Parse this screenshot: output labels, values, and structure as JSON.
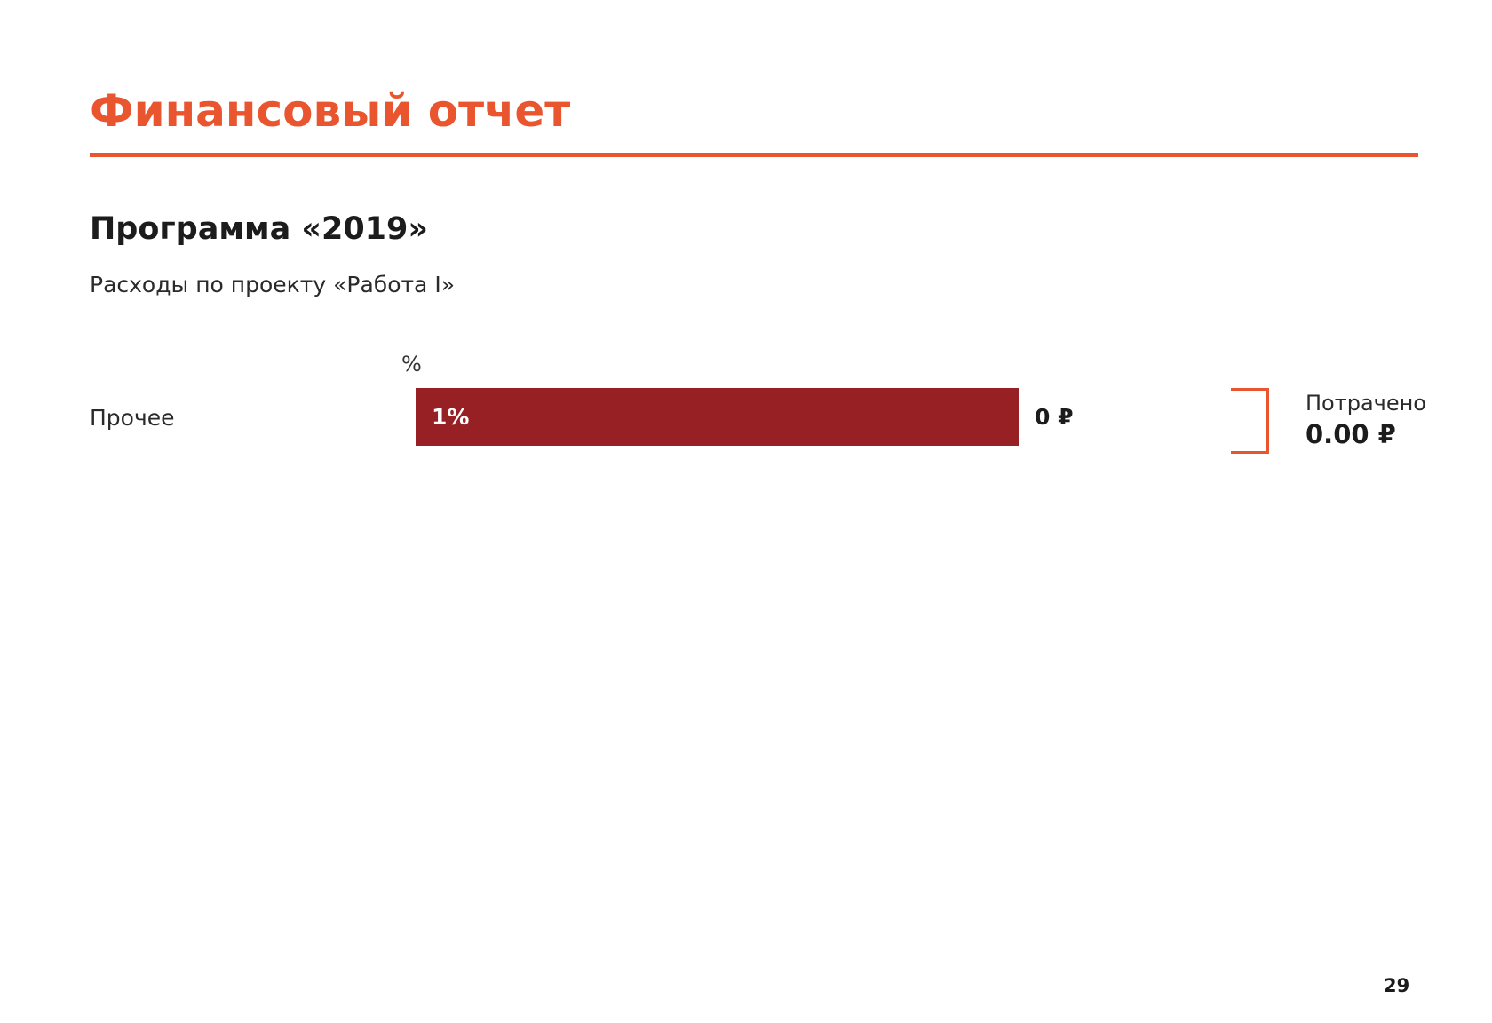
{
  "header": {
    "title": "Финансовый отчет"
  },
  "section": {
    "title": "Программа «2019»",
    "subtitle": "Расходы по проекту «Работа I»"
  },
  "table": {
    "column_header": "%",
    "rows": [
      {
        "label": "Прочее",
        "percent": "1%",
        "amount": "0 ₽"
      }
    ]
  },
  "summary": {
    "label": "Потрачено",
    "value": "0.00 ₽"
  },
  "footer": {
    "page_number": "29"
  }
}
